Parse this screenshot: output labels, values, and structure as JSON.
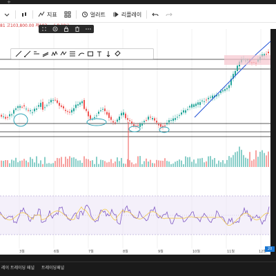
{
  "topbar": {
    "plus": "+"
  },
  "toolbar": {
    "indicators_label": "지표",
    "alert_label": "얼러트",
    "replay_label": "리플레이"
  },
  "pricebar": {
    "text": "81 고103,800.00 저103,... (-0.1%)"
  },
  "time_axis": [
    "3월",
    "6월",
    "7월",
    "8월",
    "9월",
    "10월",
    "11월",
    "12월"
  ],
  "time_axis_badge": "20",
  "bottom": {
    "tabs": [
      "레이 트레이딩 패널",
      "트레이딩패널"
    ]
  },
  "colors": {
    "up": "#26a69a",
    "down": "#ef5350",
    "trend": "#1e4fd6",
    "rsi": "#7e57c2",
    "rsi_ma": "#f2c94c"
  }
}
